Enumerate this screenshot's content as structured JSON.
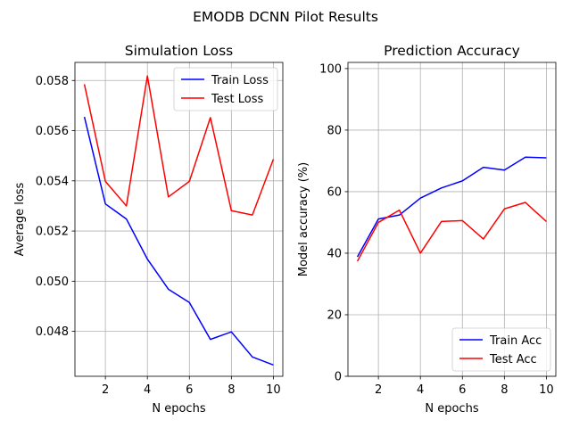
{
  "figure": {
    "suptitle": "EMODB DCNN Pilot Results"
  },
  "chart_data": [
    {
      "type": "line",
      "title": "Simulation Loss",
      "xlabel": "N epochs",
      "ylabel": "Average loss",
      "x": [
        1,
        2,
        3,
        4,
        5,
        6,
        7,
        8,
        9,
        10
      ],
      "xlim": [
        0.55,
        10.45
      ],
      "ylim": [
        0.04621,
        0.05872
      ],
      "xticks": [
        2,
        4,
        6,
        8,
        10
      ],
      "xtick_labels": [
        "2",
        "4",
        "6",
        "8",
        "10"
      ],
      "yticks": [
        0.048,
        0.05,
        0.052,
        0.054,
        0.056,
        0.058
      ],
      "ytick_labels": [
        "0.048",
        "0.050",
        "0.052",
        "0.054",
        "0.056",
        "0.058"
      ],
      "grid": true,
      "legend_position": "upper right",
      "series": [
        {
          "name": "Train Loss",
          "color": "#0000ff",
          "values": [
            0.05655,
            0.05308,
            0.05248,
            0.05088,
            0.04968,
            0.04915,
            0.04768,
            0.04798,
            0.04698,
            0.04666
          ]
        },
        {
          "name": "Test Loss",
          "color": "#ff0000",
          "values": [
            0.05785,
            0.05398,
            0.053,
            0.05818,
            0.05336,
            0.05398,
            0.05652,
            0.05281,
            0.05264,
            0.05486
          ]
        }
      ]
    },
    {
      "type": "line",
      "title": "Prediction Accuracy",
      "xlabel": "N epochs",
      "ylabel": "Model accuracy (%)",
      "x": [
        1,
        2,
        3,
        4,
        5,
        6,
        7,
        8,
        9,
        10
      ],
      "xlim": [
        0.55,
        10.45
      ],
      "ylim": [
        0,
        102
      ],
      "xticks": [
        2,
        4,
        6,
        8,
        10
      ],
      "xtick_labels": [
        "2",
        "4",
        "6",
        "8",
        "10"
      ],
      "yticks": [
        0,
        20,
        40,
        60,
        80,
        100
      ],
      "ytick_labels": [
        "0",
        "20",
        "40",
        "60",
        "80",
        "100"
      ],
      "grid": true,
      "legend_position": "lower right",
      "series": [
        {
          "name": "Train Acc",
          "color": "#0000ff",
          "values": [
            38.8,
            51.1,
            52.4,
            57.9,
            61.2,
            63.5,
            67.9,
            67.0,
            71.2,
            71.0
          ]
        },
        {
          "name": "Test Acc",
          "color": "#ff0000",
          "values": [
            37.4,
            50.0,
            54.0,
            40.0,
            50.3,
            50.6,
            44.6,
            54.4,
            56.5,
            50.3
          ]
        }
      ]
    }
  ]
}
